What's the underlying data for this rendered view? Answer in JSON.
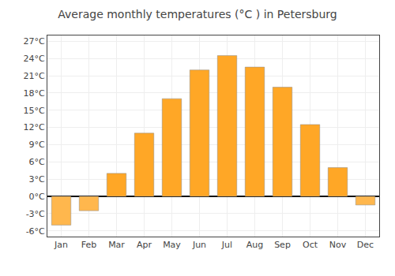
{
  "chart_data": {
    "type": "bar",
    "title": "Average monthly temperatures (°C ) in Petersburg",
    "categories": [
      "Jan",
      "Feb",
      "Mar",
      "Apr",
      "May",
      "Jun",
      "Jul",
      "Aug",
      "Sep",
      "Oct",
      "Nov",
      "Dec"
    ],
    "values": [
      -5.0,
      -2.5,
      4.0,
      11.0,
      17.0,
      22.0,
      24.5,
      22.5,
      19.0,
      12.5,
      5.0,
      -1.5
    ],
    "colors": [
      "#FFB74D",
      "#FFB74D",
      "#FFA726",
      "#FFA726",
      "#FFA726",
      "#FFA726",
      "#FFA726",
      "#FFA726",
      "#FFA726",
      "#FFA726",
      "#FFA726",
      "#FFB74D"
    ],
    "ylim": [
      -7,
      28
    ],
    "yticks": [
      {
        "value": -6,
        "label": "-6°C"
      },
      {
        "value": -3,
        "label": "-3°C"
      },
      {
        "value": 0,
        "label": "0°C"
      },
      {
        "value": 3,
        "label": "3°C"
      },
      {
        "value": 6,
        "label": "6°C"
      },
      {
        "value": 9,
        "label": "9°C"
      },
      {
        "value": 12,
        "label": "12°C"
      },
      {
        "value": 15,
        "label": "15°C"
      },
      {
        "value": 18,
        "label": "18°C"
      },
      {
        "value": 21,
        "label": "21°C"
      },
      {
        "value": 24,
        "label": "24°C"
      },
      {
        "value": 27,
        "label": "27°C"
      }
    ],
    "grid": true
  }
}
